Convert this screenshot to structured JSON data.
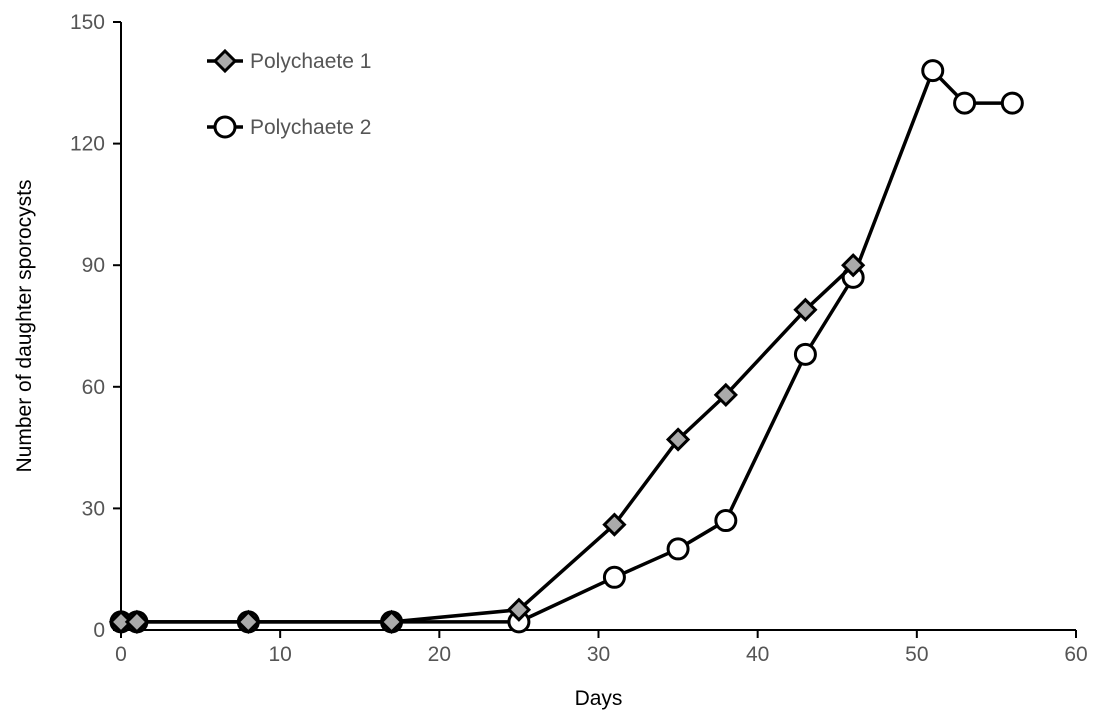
{
  "chart_data": {
    "type": "line",
    "title": "",
    "xlabel": "Days",
    "ylabel": "Number of daughter sporocysts",
    "xlim": [
      0,
      60
    ],
    "ylim": [
      0,
      150
    ],
    "xticks": [
      0,
      10,
      20,
      30,
      40,
      50,
      60
    ],
    "yticks": [
      0,
      30,
      60,
      90,
      120,
      150
    ],
    "grid": false,
    "legend_position": "top-left",
    "series": [
      {
        "name": "Polychaete 1",
        "marker": "diamond",
        "marker_fill": "#aaaaaa",
        "line_color": "#000000",
        "points": [
          [
            0,
            2
          ],
          [
            1,
            2
          ],
          [
            8,
            2
          ],
          [
            17,
            2
          ],
          [
            25,
            5
          ],
          [
            31,
            26
          ],
          [
            35,
            47
          ],
          [
            38,
            58
          ],
          [
            43,
            79
          ],
          [
            46,
            90
          ]
        ]
      },
      {
        "name": "Polychaete 2",
        "marker": "circle",
        "marker_fill": "#ffffff",
        "line_color": "#000000",
        "points": [
          [
            0,
            2
          ],
          [
            1,
            2
          ],
          [
            8,
            2
          ],
          [
            17,
            2
          ],
          [
            25,
            2
          ],
          [
            31,
            13
          ],
          [
            35,
            20
          ],
          [
            38,
            27
          ],
          [
            43,
            68
          ],
          [
            46,
            87
          ],
          [
            51,
            138
          ],
          [
            53,
            130
          ],
          [
            56,
            130
          ]
        ]
      }
    ]
  }
}
